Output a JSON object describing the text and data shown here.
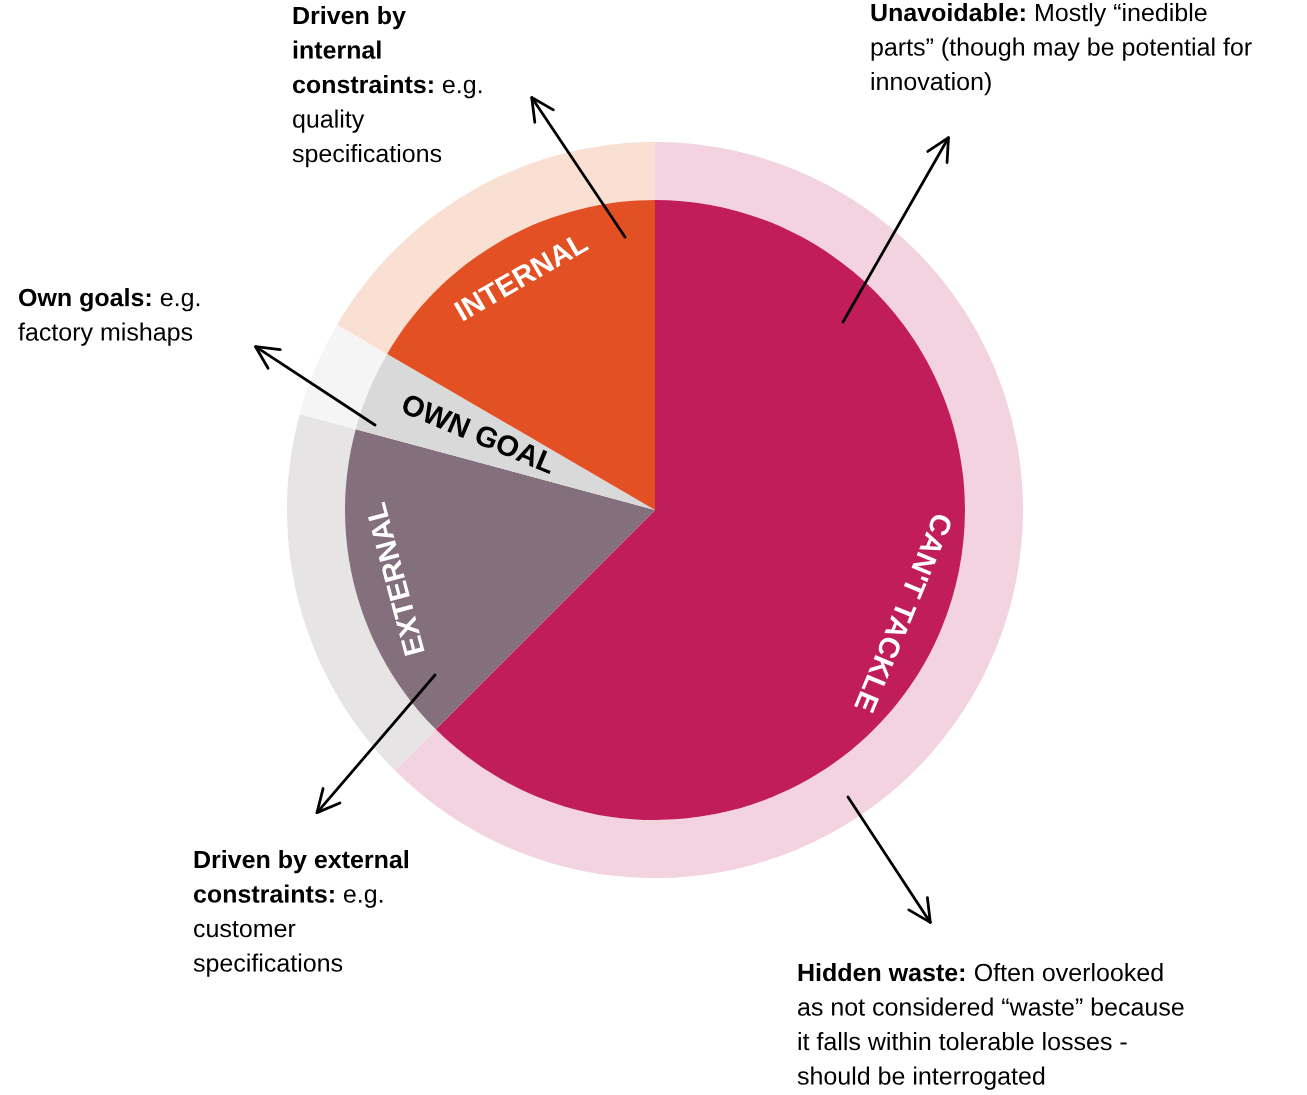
{
  "chart_data": {
    "type": "pie",
    "categories": [
      "CAN'T TACKLE",
      "EXTERNAL",
      "OWN GOAL",
      "INTERNAL"
    ],
    "series": [
      {
        "type": "pie",
        "values": [
          62.5,
          16.7,
          4.2,
          16.6
        ],
        "colors": [
          "#c21d5b",
          "#83707c",
          "#d9d9d9",
          "#e35024"
        ]
      },
      {
        "type": "donut",
        "values": [
          62.5,
          16.7,
          4.2,
          16.6
        ],
        "colors": [
          "#f2d3df",
          "#e6e4e5",
          "#f5f5f5",
          "#fadfd3"
        ]
      }
    ],
    "annotations": [
      "Unavoidable: Mostly “inedible parts” (though may be potential for innovation)",
      "Driven by internal constraints: e.g. quality specifications",
      "Own goals: e.g. factory mishaps",
      "Driven by external constraints: e.g. customer specifications",
      "Hidden waste: Often overlooked as not considered “waste” because it falls within tolerable losses - should be interrogated"
    ]
  }
}
